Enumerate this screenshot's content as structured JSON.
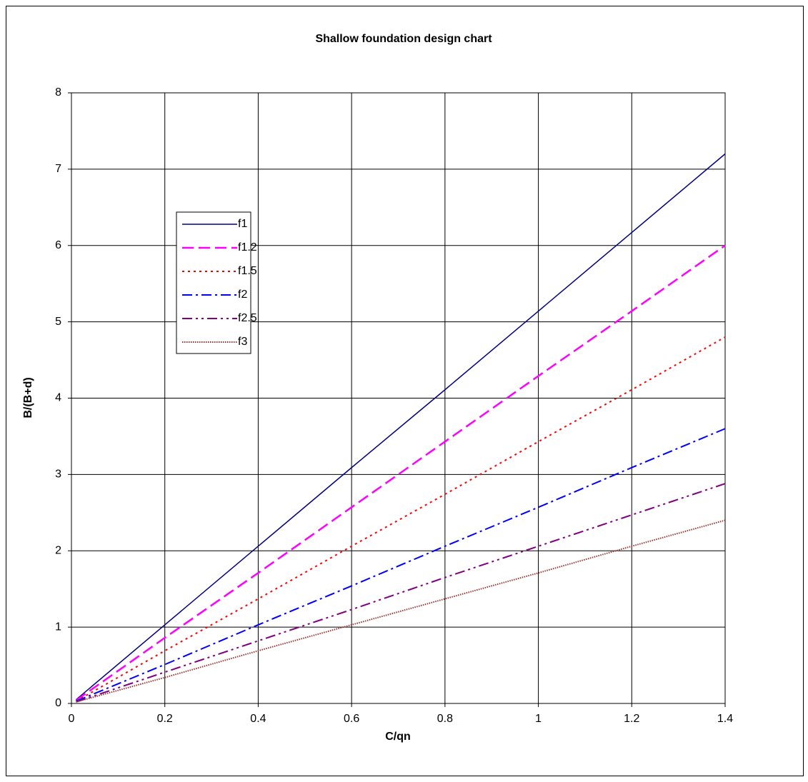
{
  "chart_data": {
    "type": "line",
    "title": "Shallow foundation design chart",
    "x_label": "C/qn",
    "y_label": "B/(B+d)",
    "x": [
      0.01,
      0.2,
      0.4,
      0.6,
      0.8,
      1.0,
      1.2,
      1.4
    ],
    "series": [
      {
        "name": "f1",
        "color": "#000080",
        "style": "solid",
        "values": [
          0.05,
          1.03,
          2.06,
          3.09,
          4.11,
          5.14,
          6.17,
          7.2
        ]
      },
      {
        "name": "f1.2",
        "color": "#ff00ff",
        "style": "dash",
        "values": [
          0.04,
          0.86,
          1.71,
          2.57,
          3.43,
          4.29,
          5.14,
          6.0
        ]
      },
      {
        "name": "f1.5",
        "color": "#ff0000",
        "style": "dot",
        "values": [
          0.03,
          0.69,
          1.37,
          2.06,
          2.74,
          3.43,
          4.11,
          4.8
        ]
      },
      {
        "name": "f2",
        "color": "#0000ff",
        "style": "dashdot",
        "values": [
          0.03,
          0.51,
          1.03,
          1.54,
          2.06,
          2.57,
          3.09,
          3.6
        ]
      },
      {
        "name": "f2.5",
        "color": "#800080",
        "style": "dashdotdot",
        "values": [
          0.02,
          0.41,
          0.82,
          1.23,
          1.65,
          2.06,
          2.47,
          2.88
        ]
      },
      {
        "name": "f3",
        "color": "#993333",
        "style": "finedot",
        "values": [
          0.02,
          0.34,
          0.69,
          1.03,
          1.37,
          1.71,
          2.06,
          2.4
        ]
      }
    ],
    "xlim": [
      0,
      1.4
    ],
    "xticks": [
      0,
      0.2,
      0.4,
      0.6,
      0.8,
      1,
      1.2,
      1.4
    ],
    "ylim": [
      0,
      8
    ],
    "yticks": [
      0,
      1,
      2,
      3,
      4,
      5,
      6,
      7,
      8
    ],
    "grid": true,
    "legend": "upper-left"
  }
}
